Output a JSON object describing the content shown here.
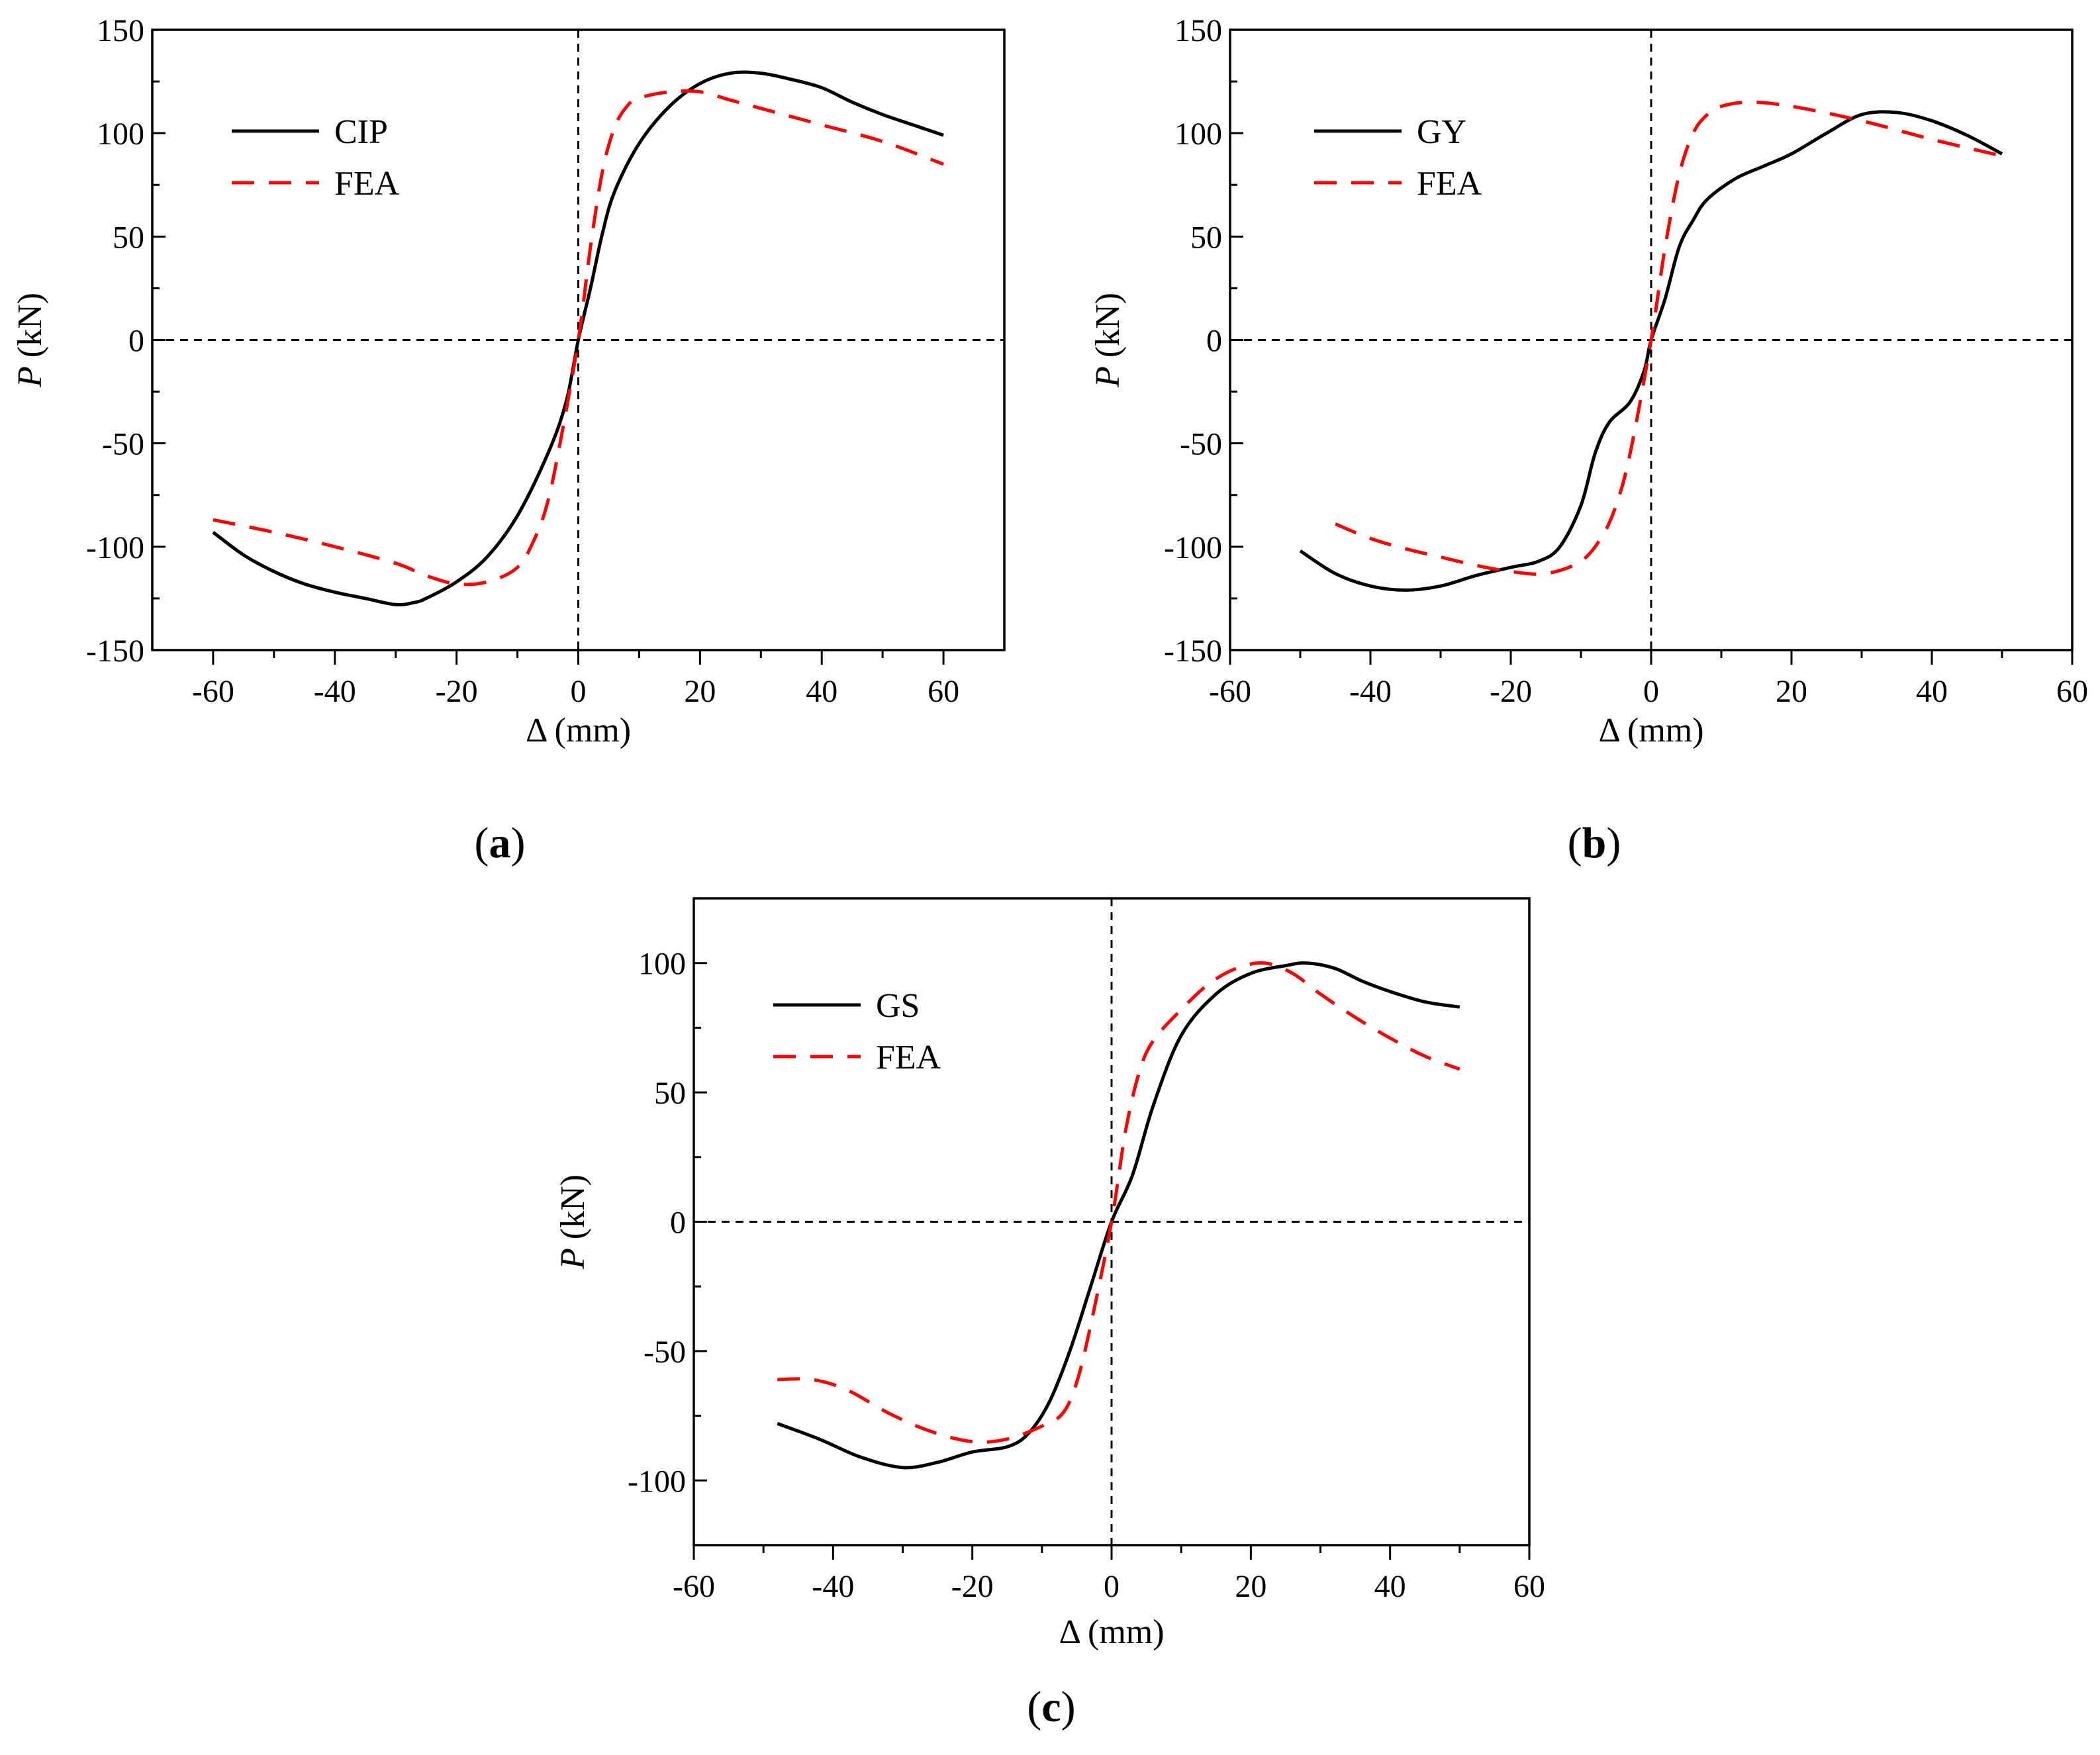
{
  "chart_data": [
    {
      "type": "line",
      "panel_label": "a",
      "xlabel": "Δ (mm)",
      "ylabel_symbol": "P",
      "ylabel_unit": " (kN)",
      "xlim": [
        -70,
        70
      ],
      "ylim": [
        -150,
        150
      ],
      "xticks": [
        -60,
        -40,
        -20,
        0,
        20,
        40,
        60
      ],
      "yticks": [
        -150,
        -100,
        -50,
        0,
        50,
        100,
        150
      ],
      "legend_position": "top-left",
      "series": [
        {
          "name": "CIP",
          "style": "solid",
          "color": "#000000",
          "points": [
            [
              -60,
              -93
            ],
            [
              -55,
              -104
            ],
            [
              -50,
              -112
            ],
            [
              -45,
              -118
            ],
            [
              -40,
              -122
            ],
            [
              -35,
              -125
            ],
            [
              -30,
              -128
            ],
            [
              -27,
              -127
            ],
            [
              -25,
              -125
            ],
            [
              -20,
              -117
            ],
            [
              -15,
              -105
            ],
            [
              -10,
              -85
            ],
            [
              -5,
              -55
            ],
            [
              -2,
              -30
            ],
            [
              0,
              0
            ],
            [
              2,
              25
            ],
            [
              4,
              52
            ],
            [
              6,
              72
            ],
            [
              10,
              95
            ],
            [
              15,
              113
            ],
            [
              20,
              124
            ],
            [
              25,
              129
            ],
            [
              30,
              129
            ],
            [
              35,
              126
            ],
            [
              40,
              122
            ],
            [
              45,
              115
            ],
            [
              50,
              109
            ],
            [
              55,
              104
            ],
            [
              60,
              99
            ]
          ]
        },
        {
          "name": "FEA",
          "style": "dashed",
          "color": "#ff0000",
          "points": [
            [
              -60,
              -87
            ],
            [
              -50,
              -93
            ],
            [
              -40,
              -100
            ],
            [
              -30,
              -108
            ],
            [
              -25,
              -114
            ],
            [
              -20,
              -118
            ],
            [
              -15,
              -117
            ],
            [
              -10,
              -110
            ],
            [
              -7,
              -95
            ],
            [
              -5,
              -78
            ],
            [
              -3,
              -50
            ],
            [
              0,
              0
            ],
            [
              2,
              45
            ],
            [
              4,
              82
            ],
            [
              6,
              103
            ],
            [
              8,
              113
            ],
            [
              10,
              117
            ],
            [
              15,
              120
            ],
            [
              20,
              120
            ],
            [
              25,
              116
            ],
            [
              30,
              112
            ],
            [
              40,
              104
            ],
            [
              50,
              96
            ],
            [
              60,
              85
            ]
          ]
        }
      ]
    },
    {
      "type": "line",
      "panel_label": "b",
      "xlabel": "Δ (mm)",
      "ylabel_symbol": "P",
      "ylabel_unit": " (kN)",
      "xlim": [
        -60,
        60
      ],
      "ylim": [
        -150,
        150
      ],
      "xticks": [
        -60,
        -40,
        -20,
        0,
        20,
        40,
        60
      ],
      "yticks": [
        -150,
        -100,
        -50,
        0,
        50,
        100,
        150
      ],
      "legend_position": "top-left",
      "series": [
        {
          "name": "GY",
          "style": "solid",
          "color": "#000000",
          "points": [
            [
              -50,
              -102
            ],
            [
              -45,
              -113
            ],
            [
              -40,
              -119
            ],
            [
              -35,
              -121
            ],
            [
              -30,
              -119
            ],
            [
              -25,
              -114
            ],
            [
              -20,
              -110
            ],
            [
              -16,
              -107
            ],
            [
              -13,
              -100
            ],
            [
              -10,
              -80
            ],
            [
              -8,
              -55
            ],
            [
              -6,
              -40
            ],
            [
              -3,
              -30
            ],
            [
              -1,
              -15
            ],
            [
              0,
              0
            ],
            [
              2,
              20
            ],
            [
              4,
              45
            ],
            [
              6,
              58
            ],
            [
              8,
              68
            ],
            [
              12,
              78
            ],
            [
              16,
              84
            ],
            [
              20,
              90
            ],
            [
              25,
              100
            ],
            [
              30,
              109
            ],
            [
              35,
              110
            ],
            [
              40,
              106
            ],
            [
              45,
              99
            ],
            [
              50,
              90
            ]
          ]
        },
        {
          "name": "FEA",
          "style": "dashed",
          "color": "#ff0000",
          "points": [
            [
              -45,
              -89
            ],
            [
              -40,
              -96
            ],
            [
              -35,
              -101
            ],
            [
              -30,
              -105
            ],
            [
              -25,
              -109
            ],
            [
              -20,
              -112
            ],
            [
              -15,
              -113
            ],
            [
              -10,
              -107
            ],
            [
              -7,
              -95
            ],
            [
              -5,
              -80
            ],
            [
              -3,
              -55
            ],
            [
              0,
              0
            ],
            [
              2,
              45
            ],
            [
              4,
              80
            ],
            [
              6,
              100
            ],
            [
              8,
              109
            ],
            [
              10,
              113
            ],
            [
              14,
              115
            ],
            [
              20,
              113
            ],
            [
              30,
              106
            ],
            [
              40,
              97
            ],
            [
              50,
              89
            ]
          ]
        }
      ]
    },
    {
      "type": "line",
      "panel_label": "c",
      "xlabel": "Δ (mm)",
      "ylabel_symbol": "P",
      "ylabel_unit": " (kN)",
      "xlim": [
        -60,
        60
      ],
      "ylim": [
        -125,
        125
      ],
      "xticks": [
        -60,
        -40,
        -20,
        0,
        20,
        40,
        60
      ],
      "yticks": [
        -100,
        -50,
        0,
        50,
        100
      ],
      "legend_position": "top-left",
      "series": [
        {
          "name": "GS",
          "style": "solid",
          "color": "#000000",
          "points": [
            [
              -48,
              -78
            ],
            [
              -42,
              -84
            ],
            [
              -36,
              -91
            ],
            [
              -30,
              -95
            ],
            [
              -25,
              -93
            ],
            [
              -20,
              -89
            ],
            [
              -15,
              -87
            ],
            [
              -12,
              -82
            ],
            [
              -9,
              -70
            ],
            [
              -6,
              -50
            ],
            [
              -3,
              -25
            ],
            [
              0,
              0
            ],
            [
              3,
              18
            ],
            [
              6,
              45
            ],
            [
              10,
              72
            ],
            [
              15,
              88
            ],
            [
              20,
              96
            ],
            [
              25,
              99
            ],
            [
              28,
              100
            ],
            [
              32,
              98
            ],
            [
              36,
              93
            ],
            [
              40,
              89
            ],
            [
              45,
              85
            ],
            [
              50,
              83
            ]
          ]
        },
        {
          "name": "FEA",
          "style": "dashed",
          "color": "#ff0000",
          "points": [
            [
              -48,
              -61
            ],
            [
              -43,
              -61
            ],
            [
              -38,
              -65
            ],
            [
              -32,
              -74
            ],
            [
              -26,
              -81
            ],
            [
              -20,
              -85
            ],
            [
              -15,
              -84
            ],
            [
              -10,
              -79
            ],
            [
              -7,
              -74
            ],
            [
              -5,
              -62
            ],
            [
              -3,
              -40
            ],
            [
              0,
              0
            ],
            [
              2,
              35
            ],
            [
              4,
              58
            ],
            [
              6,
              70
            ],
            [
              10,
              82
            ],
            [
              14,
              92
            ],
            [
              18,
              98
            ],
            [
              22,
              100
            ],
            [
              26,
              96
            ],
            [
              30,
              88
            ],
            [
              35,
              79
            ],
            [
              40,
              71
            ],
            [
              45,
              64
            ],
            [
              50,
              59
            ]
          ]
        }
      ]
    }
  ]
}
